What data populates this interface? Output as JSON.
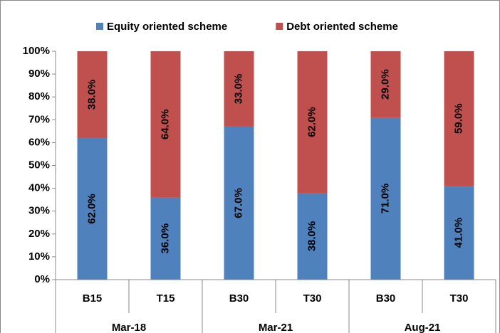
{
  "chart_data": {
    "type": "stacked_bar",
    "categories": [
      "B15",
      "T15",
      "B30",
      "T30",
      "B30",
      "T30"
    ],
    "groups": [
      "Mar-18",
      "Mar-21",
      "Aug-21"
    ],
    "series": [
      {
        "name": "Equity oriented scheme",
        "color": "#4f81bd",
        "values": [
          62,
          36,
          67,
          38,
          71,
          41
        ],
        "value_labels": [
          "62.0%",
          "36.0%",
          "67.0%",
          "38.0%",
          "71.0%",
          "41.0%"
        ]
      },
      {
        "name": "Debt oriented scheme",
        "color": "#c0504d",
        "values": [
          38,
          64,
          33,
          62,
          29,
          59
        ],
        "value_labels": [
          "38.0%",
          "64.0%",
          "33.0%",
          "62.0%",
          "29.0%",
          "59.0%"
        ]
      }
    ],
    "ylim": [
      0,
      100
    ],
    "yticks": [
      {
        "value": 0,
        "label": "0%"
      },
      {
        "value": 10,
        "label": "10%"
      },
      {
        "value": 20,
        "label": "20%"
      },
      {
        "value": 30,
        "label": "30%"
      },
      {
        "value": 40,
        "label": "40%"
      },
      {
        "value": 50,
        "label": "50%"
      },
      {
        "value": 60,
        "label": "60%"
      },
      {
        "value": 70,
        "label": "70%"
      },
      {
        "value": 80,
        "label": "80%"
      },
      {
        "value": 90,
        "label": "90%"
      },
      {
        "value": 100,
        "label": "100%"
      }
    ],
    "legend": "top"
  }
}
